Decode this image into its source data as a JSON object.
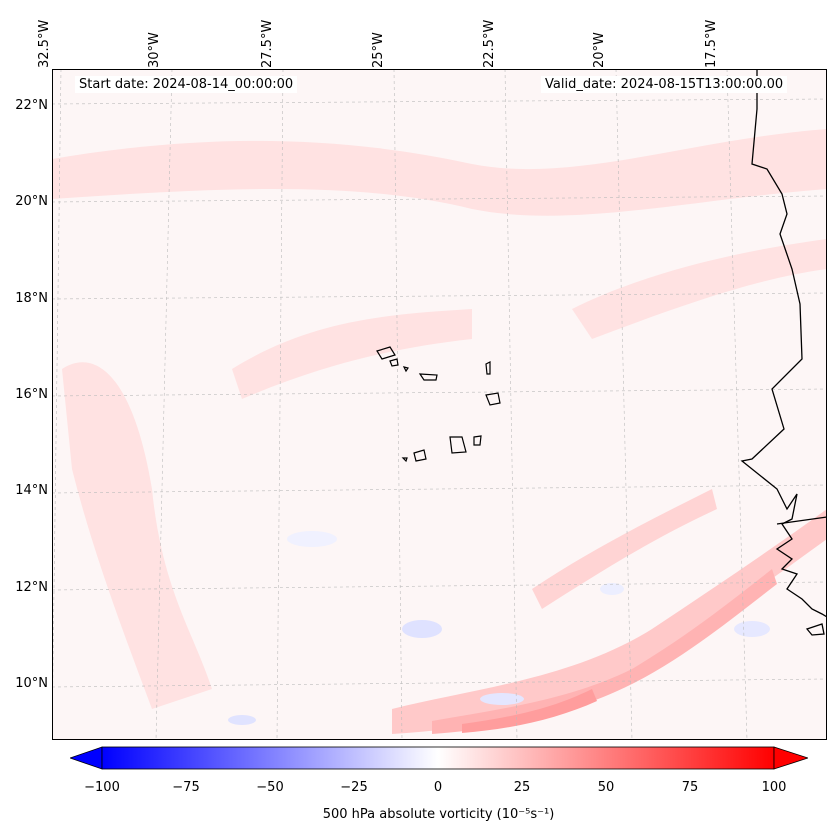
{
  "map": {
    "longitude_labels": [
      "32.5°W",
      "30°W",
      "27.5°W",
      "25°W",
      "22.5°W",
      "20°W",
      "17.5°W"
    ],
    "latitude_labels": [
      "22°N",
      "20°N",
      "18°N",
      "16°N",
      "14°N",
      "12°N",
      "10°N"
    ],
    "start_date_text": "Start date: 2024-08-14_00:00:00",
    "valid_date_text": "Valid_date: 2024-08-15T13:00:00.00",
    "field": "500 hPa absolute vorticity"
  },
  "colorbar": {
    "ticks": [
      "−100",
      "−75",
      "−50",
      "−25",
      "0",
      "25",
      "50",
      "75",
      "100"
    ],
    "label": "500 hPa absolute vorticity (10⁻⁵s⁻¹)",
    "colors": {
      "min": "#0000ff",
      "mid": "#ffffff",
      "max": "#ff0000"
    }
  },
  "colors": {
    "coast": "#000000",
    "grid": "#bbbbbb",
    "background": "#fdf6f6"
  }
}
